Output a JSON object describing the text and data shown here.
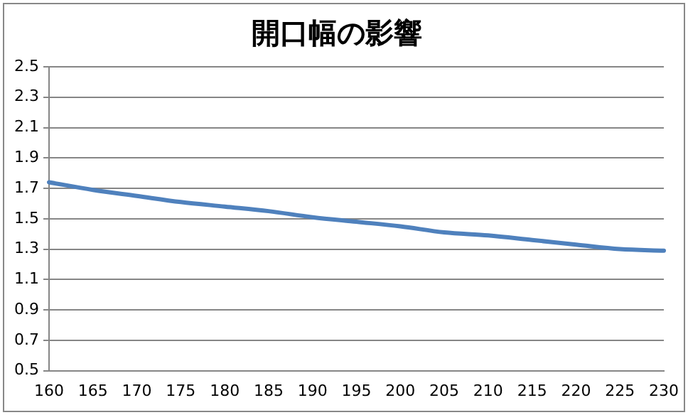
{
  "chart_data": {
    "type": "line",
    "title": "開口幅の影響",
    "categories": [
      "160",
      "165",
      "170",
      "175",
      "180",
      "185",
      "190",
      "195",
      "200",
      "205",
      "210",
      "215",
      "220",
      "225",
      "230"
    ],
    "series": [
      {
        "color": "#4f81bd",
        "values": [
          1.74,
          1.69,
          1.65,
          1.61,
          1.58,
          1.55,
          1.51,
          1.48,
          1.45,
          1.41,
          1.39,
          1.36,
          1.33,
          1.3,
          1.29
        ]
      }
    ],
    "ylim": [
      0.5,
      2.5
    ],
    "yticks": [
      0.5,
      0.7,
      0.9,
      1.1,
      1.3,
      1.5,
      1.7,
      1.9,
      2.1,
      2.3,
      2.5
    ],
    "grid": "y",
    "legend": false,
    "marker": "none",
    "line_style": "solid"
  }
}
